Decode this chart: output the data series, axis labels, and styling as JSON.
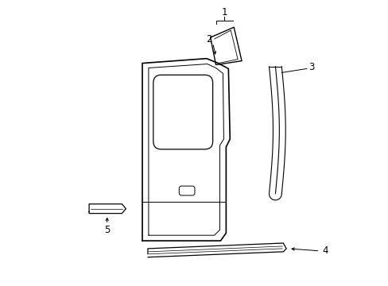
{
  "bg_color": "#ffffff",
  "line_color": "#000000",
  "lw": 1.0,
  "fig_width": 4.89,
  "fig_height": 3.6
}
